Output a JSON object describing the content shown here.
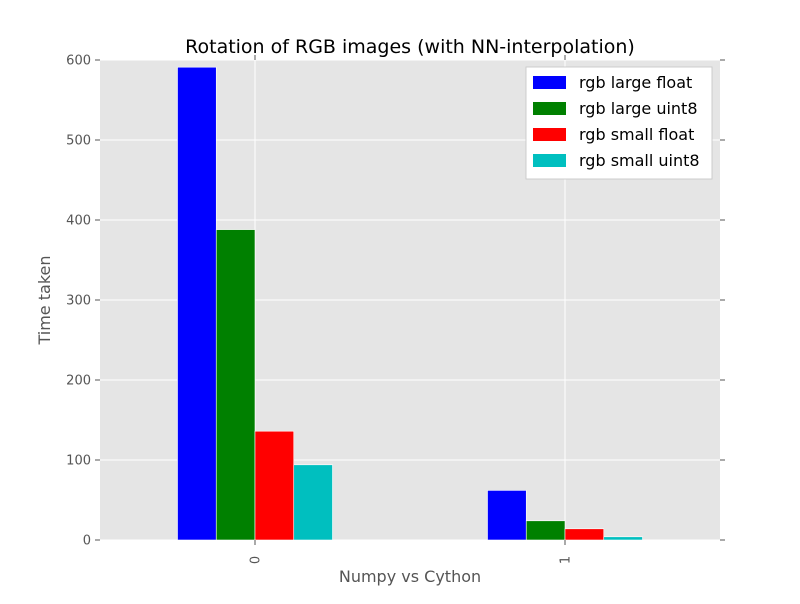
{
  "chart_data": {
    "type": "bar",
    "title": "Rotation of RGB images (with NN-interpolation)",
    "xlabel": "Numpy vs Cython",
    "ylabel": "Time taken",
    "categories": [
      "0",
      "1"
    ],
    "ylim": [
      0,
      600
    ],
    "yticks": [
      0,
      100,
      200,
      300,
      400,
      500,
      600
    ],
    "grid": true,
    "legend_position": "top-right",
    "series": [
      {
        "name": "rgb large float",
        "color": "#0000ff",
        "values": [
          591,
          62
        ]
      },
      {
        "name": "rgb large uint8",
        "color": "#008000",
        "values": [
          388,
          24
        ]
      },
      {
        "name": "rgb small float",
        "color": "#ff0000",
        "values": [
          136,
          14
        ]
      },
      {
        "name": "rgb small uint8",
        "color": "#00bfbf",
        "values": [
          94,
          4
        ]
      }
    ],
    "colors": {
      "plot_background": "#e5e5e5",
      "grid": "#ffffff",
      "text": "#555555",
      "title": "#000000"
    }
  }
}
